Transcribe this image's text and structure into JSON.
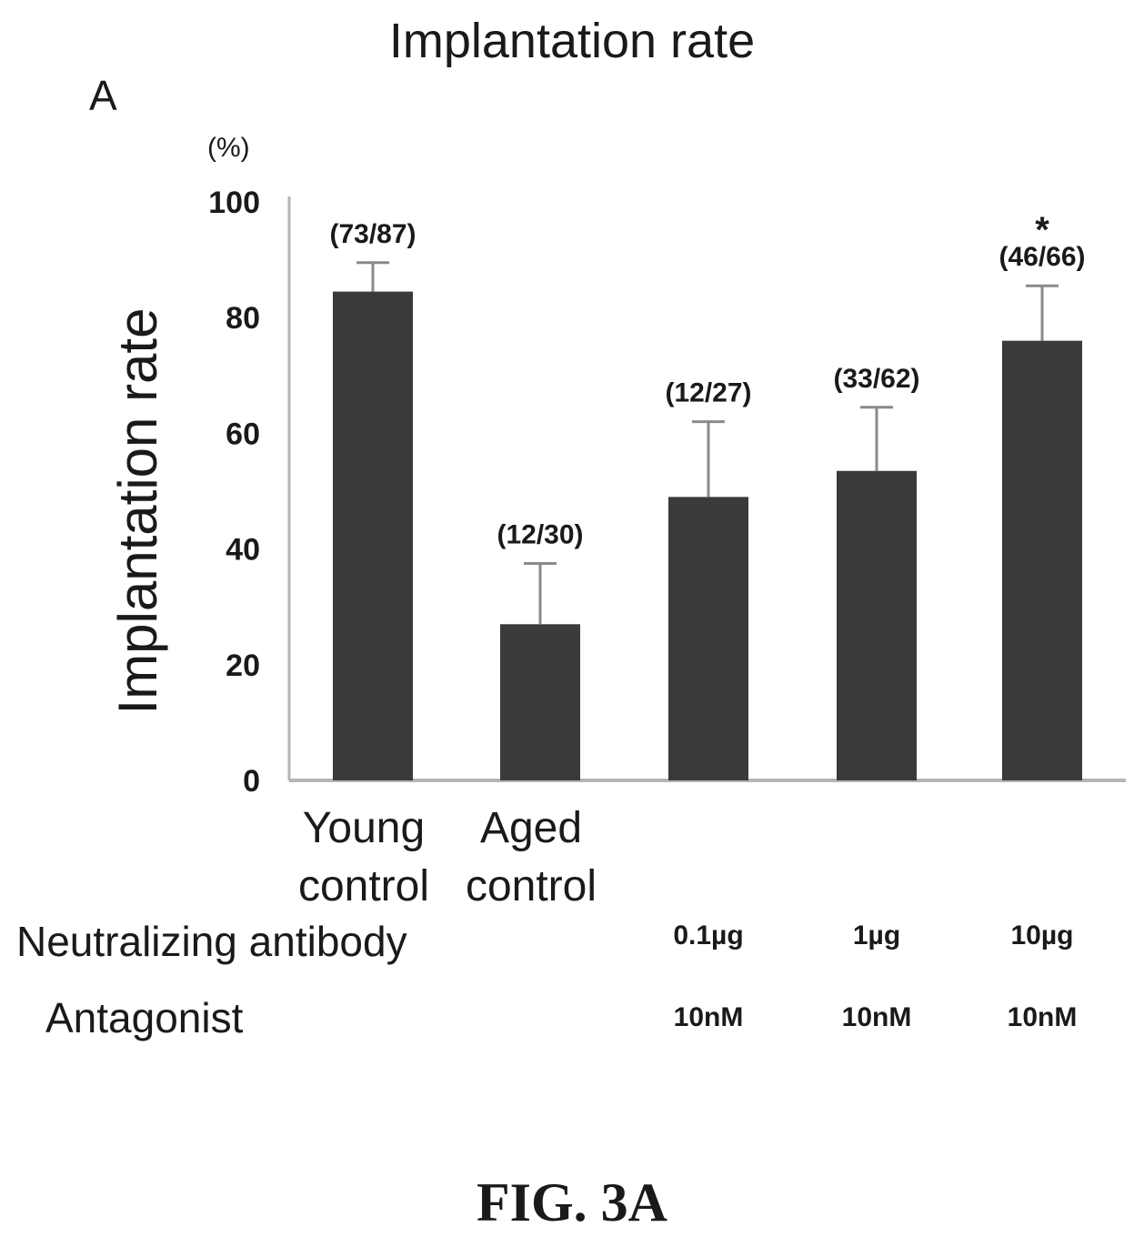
{
  "chart_data": {
    "type": "bar",
    "title": "Implantation rate",
    "panel_label": "A",
    "ylabel": "Implantation rate",
    "yunit": "(%)",
    "ylim": [
      0,
      100
    ],
    "yticks": [
      0,
      20,
      40,
      60,
      80,
      100
    ],
    "categories": [
      "Young control",
      "Aged control",
      "",
      "",
      ""
    ],
    "category_lines": [
      [
        "Young",
        "control"
      ],
      [
        "Aged",
        "control"
      ],
      [],
      [],
      []
    ],
    "values": [
      84.5,
      27,
      49,
      53.5,
      76
    ],
    "error_upper": [
      89.5,
      37.5,
      62,
      64.5,
      85.5
    ],
    "bar_labels": [
      "(73/87)",
      "(12/30)",
      "(12/27)",
      "(33/62)",
      "(46/66)"
    ],
    "significance": [
      "",
      "",
      "",
      "",
      "*"
    ],
    "bar_color": "#3a3a3a",
    "grid": false,
    "legend": "none"
  },
  "conditions": {
    "neutralizing_label": "Neutralizing antibody",
    "neutralizing_values": [
      "",
      "",
      "0.1µg",
      "1µg",
      "10µg"
    ],
    "antagonist_label": "Antagonist",
    "antagonist_values": [
      "",
      "",
      "10nM",
      "10nM",
      "10nM"
    ]
  },
  "figure_label": "FIG. 3A"
}
